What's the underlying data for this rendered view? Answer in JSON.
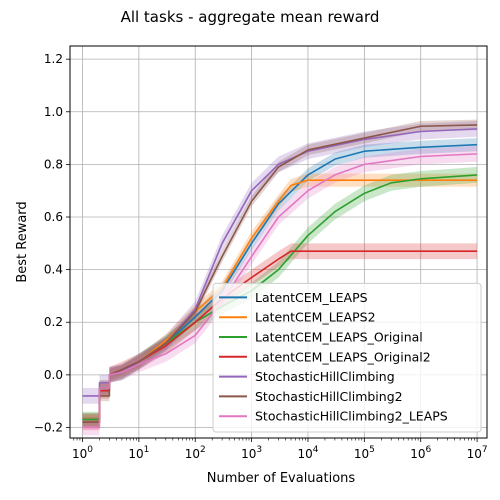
{
  "chart_data": {
    "type": "line",
    "title": "All tasks - aggregate mean reward",
    "xlabel": "Number of Evaluations",
    "ylabel": "Best Reward",
    "xscale": "log",
    "xlim": [
      0.6,
      15000000
    ],
    "ylim": [
      -0.24,
      1.25
    ],
    "x_ticks": [
      1,
      10,
      100,
      1000,
      10000,
      100000,
      1000000,
      10000000
    ],
    "x_tick_labels": [
      {
        "base": "10",
        "exp": "0"
      },
      {
        "base": "10",
        "exp": "1"
      },
      {
        "base": "10",
        "exp": "2"
      },
      {
        "base": "10",
        "exp": "3"
      },
      {
        "base": "10",
        "exp": "4"
      },
      {
        "base": "10",
        "exp": "5"
      },
      {
        "base": "10",
        "exp": "6"
      },
      {
        "base": "10",
        "exp": "7"
      }
    ],
    "y_ticks": [
      -0.2,
      0.0,
      0.2,
      0.4,
      0.6,
      0.8,
      1.0,
      1.2
    ],
    "y_tick_labels": [
      "−0.2",
      "0.0",
      "0.2",
      "0.4",
      "0.6",
      "0.8",
      "1.0",
      "1.2"
    ],
    "grid": true,
    "legend_position": "lower-right",
    "series": [
      {
        "name": "LatentCEM_LEAPS",
        "color": "#1f77b4",
        "band": 0.025,
        "x": [
          1,
          2,
          2,
          3,
          3,
          5,
          10,
          30,
          100,
          300,
          1000,
          3000,
          10000,
          30000,
          100000,
          1000000,
          10000000
        ],
        "y": [
          -0.17,
          -0.17,
          -0.05,
          -0.05,
          0.0,
          0.01,
          0.05,
          0.12,
          0.22,
          0.32,
          0.5,
          0.65,
          0.76,
          0.82,
          0.85,
          0.865,
          0.875
        ]
      },
      {
        "name": "LatentCEM_LEAPS2",
        "color": "#ff7f0e",
        "band": 0.025,
        "x": [
          1,
          2,
          2,
          3,
          3,
          5,
          10,
          30,
          100,
          300,
          1000,
          3000,
          5000,
          10000,
          100000,
          1000000,
          10000000
        ],
        "y": [
          -0.17,
          -0.17,
          -0.05,
          -0.05,
          0.0,
          0.01,
          0.05,
          0.13,
          0.24,
          0.33,
          0.52,
          0.66,
          0.72,
          0.74,
          0.74,
          0.74,
          0.74
        ]
      },
      {
        "name": "LatentCEM_LEAPS_Original",
        "color": "#2ca02c",
        "band": 0.03,
        "x": [
          1,
          2,
          2,
          3,
          3,
          5,
          10,
          30,
          100,
          300,
          1000,
          3000,
          10000,
          30000,
          100000,
          300000,
          1000000,
          10000000
        ],
        "y": [
          -0.17,
          -0.17,
          -0.05,
          -0.05,
          0.0,
          0.01,
          0.05,
          0.12,
          0.2,
          0.26,
          0.32,
          0.4,
          0.53,
          0.62,
          0.69,
          0.73,
          0.745,
          0.76
        ]
      },
      {
        "name": "LatentCEM_LEAPS_Original2",
        "color": "#d62728",
        "band": 0.03,
        "x": [
          1,
          2,
          2,
          3,
          3,
          5,
          10,
          30,
          100,
          300,
          1000,
          3000,
          5000,
          10000,
          10000000
        ],
        "y": [
          -0.18,
          -0.18,
          -0.06,
          -0.06,
          0.0,
          0.02,
          0.05,
          0.11,
          0.2,
          0.29,
          0.37,
          0.44,
          0.47,
          0.47,
          0.47
        ]
      },
      {
        "name": "StochasticHillClimbing",
        "color": "#9467bd",
        "band": 0.03,
        "x": [
          1,
          2,
          2,
          3,
          3,
          5,
          10,
          30,
          100,
          300,
          1000,
          3000,
          10000,
          100000,
          1000000,
          10000000
        ],
        "y": [
          -0.08,
          -0.08,
          -0.03,
          -0.03,
          0.0,
          0.01,
          0.05,
          0.12,
          0.25,
          0.5,
          0.7,
          0.8,
          0.85,
          0.895,
          0.925,
          0.935
        ]
      },
      {
        "name": "StochasticHillClimbing2",
        "color": "#8c564b",
        "band": 0.02,
        "x": [
          1,
          2,
          2,
          3,
          3,
          5,
          10,
          30,
          100,
          300,
          1000,
          3000,
          10000,
          100000,
          1000000,
          10000000
        ],
        "y": [
          -0.18,
          -0.18,
          -0.08,
          -0.08,
          0.0,
          0.02,
          0.05,
          0.12,
          0.24,
          0.45,
          0.66,
          0.79,
          0.855,
          0.9,
          0.945,
          0.95
        ]
      },
      {
        "name": "StochasticHillClimbing2_LEAPS",
        "color": "#e377c2",
        "band": 0.03,
        "x": [
          1,
          2,
          2,
          3,
          3,
          5,
          10,
          30,
          100,
          300,
          1000,
          3000,
          10000,
          30000,
          100000,
          1000000,
          10000000
        ],
        "y": [
          -0.2,
          -0.2,
          -0.05,
          -0.05,
          0.0,
          0.01,
          0.04,
          0.08,
          0.15,
          0.28,
          0.45,
          0.6,
          0.7,
          0.76,
          0.8,
          0.83,
          0.84
        ]
      }
    ]
  }
}
